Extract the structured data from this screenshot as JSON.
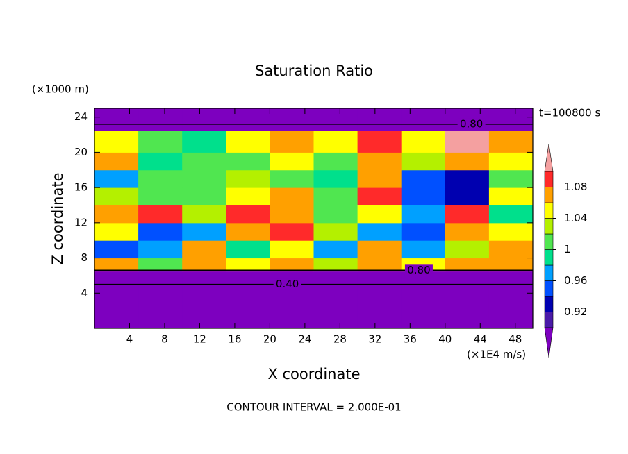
{
  "chart_data": {
    "type": "contourf",
    "title": "Saturation Ratio",
    "xlabel": "X coordinate",
    "ylabel": "Z coordinate",
    "x_unit": "(×1E4 m/s)",
    "y_unit": "(×1000 m)",
    "time_label": "t=100800 s",
    "footer": "CONTOUR INTERVAL = 2.000E-01",
    "xlim": [
      0,
      50
    ],
    "ylim": [
      0,
      25
    ],
    "xticks": [
      4,
      8,
      12,
      16,
      20,
      24,
      28,
      32,
      36,
      40,
      44,
      48
    ],
    "yticks": [
      4,
      8,
      12,
      16,
      20,
      24
    ],
    "x_edges": [
      0,
      5,
      10,
      15,
      20,
      25,
      30,
      35,
      40,
      45,
      50
    ],
    "z_edges": [
      0,
      4,
      6.5,
      8,
      10,
      12,
      14,
      16,
      18,
      20,
      22.5,
      25
    ],
    "values": [
      [
        0.3,
        0.3,
        0.3,
        0.3,
        0.3,
        0.3,
        0.3,
        0.3,
        0.3,
        0.3
      ],
      [
        0.6,
        0.6,
        0.6,
        0.6,
        0.6,
        0.6,
        0.6,
        0.6,
        0.6,
        0.6
      ],
      [
        1.06,
        1.0,
        1.06,
        1.04,
        1.06,
        1.02,
        1.06,
        1.04,
        1.06,
        1.06
      ],
      [
        0.94,
        0.96,
        1.06,
        0.98,
        1.04,
        0.96,
        1.06,
        0.96,
        1.02,
        1.06
      ],
      [
        1.04,
        0.94,
        0.96,
        1.06,
        1.08,
        1.02,
        0.96,
        0.94,
        1.06,
        1.04
      ],
      [
        1.06,
        1.08,
        1.02,
        1.08,
        1.06,
        1.0,
        1.04,
        0.96,
        1.08,
        0.98
      ],
      [
        1.02,
        1.0,
        1.0,
        1.04,
        1.06,
        1.0,
        1.08,
        0.94,
        0.92,
        1.04
      ],
      [
        0.96,
        1.0,
        1.0,
        1.02,
        1.0,
        0.99,
        1.06,
        0.94,
        0.93,
        1.0
      ],
      [
        1.06,
        0.99,
        1.0,
        1.0,
        1.04,
        1.0,
        1.06,
        1.02,
        1.06,
        1.04
      ],
      [
        1.04,
        1.0,
        0.99,
        1.04,
        1.06,
        1.04,
        1.08,
        1.04,
        1.12,
        1.06
      ],
      [
        0.5,
        0.5,
        0.5,
        0.5,
        0.5,
        0.5,
        0.5,
        0.5,
        0.5,
        0.5
      ]
    ],
    "levels": [
      0.9,
      0.92,
      0.94,
      0.96,
      0.98,
      1,
      1.02,
      1.04,
      1.06,
      1.08,
      1.1
    ],
    "colors": [
      "#7d00bf",
      "#4a1aa8",
      "#0000b0",
      "#0050ff",
      "#00a0ff",
      "#00e08c",
      "#50e650",
      "#b4f000",
      "#ffff00",
      "#ffa000",
      "#ff2a2a",
      "#f4a0a0"
    ],
    "colorbar_ticks": [
      0.92,
      0.96,
      1,
      1.04,
      1.08
    ],
    "contour_lines": [
      {
        "level": {
          "value": 0.4,
          "label": "0.40"
        },
        "z": 5.0,
        "label_x": 22
      },
      {
        "level": {
          "value": 0.8,
          "label": "0.80"
        },
        "z": 6.6,
        "label_x": 37
      },
      {
        "level": {
          "value": 0.8,
          "label": "0.80"
        },
        "z": 23.2,
        "label_x": 43
      }
    ]
  }
}
